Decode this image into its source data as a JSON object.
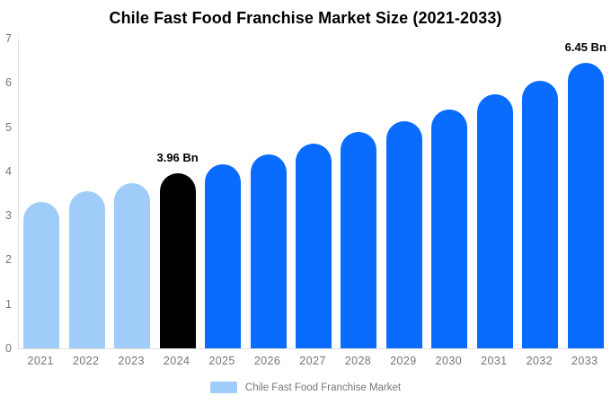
{
  "title": "Chile Fast Food Franchise Market Size (2021-2033)",
  "legend": {
    "label": "Chile Fast Food Franchise Market",
    "swatch_color": "#a0ccfa"
  },
  "y_axis": {
    "ticks": [
      0,
      1,
      2,
      3,
      4,
      5,
      6,
      7
    ]
  },
  "colors": {
    "background": "#ffffff",
    "axis_line": "#e0e0e0",
    "tick_text": "#757575",
    "highlight_black": "#000000",
    "base_light_blue": "#a0ccfa",
    "forecast_blue": "#0a6cff"
  },
  "chart_data": {
    "type": "bar",
    "title": "Chile Fast Food Franchise Market Size (2021-2033)",
    "unit": "Bn",
    "categories": [
      "2021",
      "2022",
      "2023",
      "2024",
      "2025",
      "2026",
      "2027",
      "2028",
      "2029",
      "2030",
      "2031",
      "2032",
      "2033"
    ],
    "series": [
      {
        "name": "Chile Fast Food Franchise Market",
        "values": [
          3.3,
          3.55,
          3.73,
          3.96,
          4.15,
          4.38,
          4.62,
          4.9,
          5.13,
          5.4,
          5.75,
          6.05,
          6.45
        ]
      }
    ],
    "bar_colors": [
      "#a0ccfa",
      "#a0ccfa",
      "#a0ccfa",
      "#000000",
      "#0a6cff",
      "#0a6cff",
      "#0a6cff",
      "#0a6cff",
      "#0a6cff",
      "#0a6cff",
      "#0a6cff",
      "#0a6cff",
      "#0a6cff"
    ],
    "data_labels": [
      {
        "index": 3,
        "text": "3.96 Bn"
      },
      {
        "index": 12,
        "text": "6.45 Bn"
      }
    ],
    "xlabel": "",
    "ylabel": "",
    "ylim": [
      0,
      7
    ],
    "grid": false,
    "legend_position": "bottom"
  }
}
